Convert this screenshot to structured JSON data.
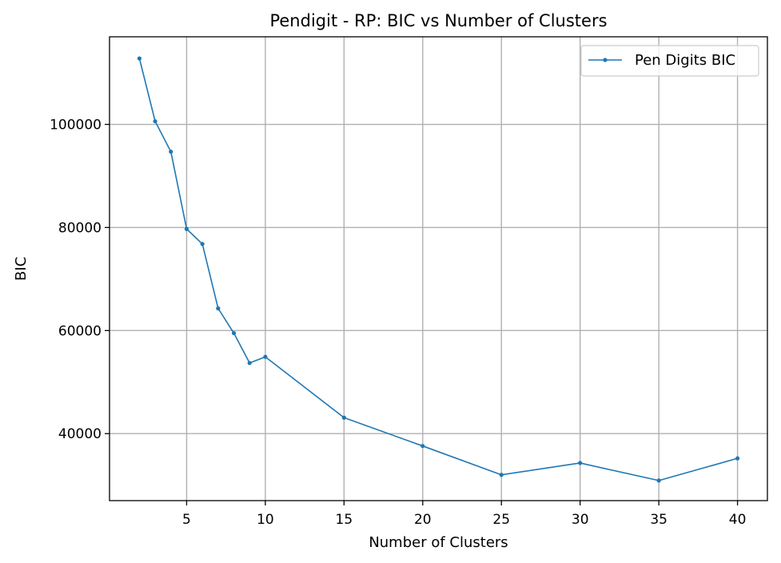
{
  "chart_data": {
    "type": "line",
    "title": "Pendigit - RP: BIC vs Number of Clusters",
    "xlabel": "Number of Clusters",
    "ylabel": "BIC",
    "xlim": [
      0.1,
      41.9
    ],
    "ylim": [
      27000,
      117000
    ],
    "xticks": [
      5,
      10,
      15,
      20,
      25,
      30,
      35,
      40
    ],
    "yticks": [
      40000,
      60000,
      80000,
      100000
    ],
    "grid": true,
    "legend_position": "top-right",
    "series": [
      {
        "name": "Pen Digits BIC",
        "color": "#1f77b4",
        "marker": "dot",
        "x": [
          2,
          3,
          4,
          5,
          6,
          7,
          8,
          9,
          10,
          15,
          20,
          25,
          30,
          35,
          40
        ],
        "y": [
          112800,
          100600,
          94700,
          79700,
          76800,
          64300,
          59500,
          53700,
          54900,
          43100,
          37600,
          32000,
          34300,
          30900,
          35200
        ]
      }
    ]
  }
}
